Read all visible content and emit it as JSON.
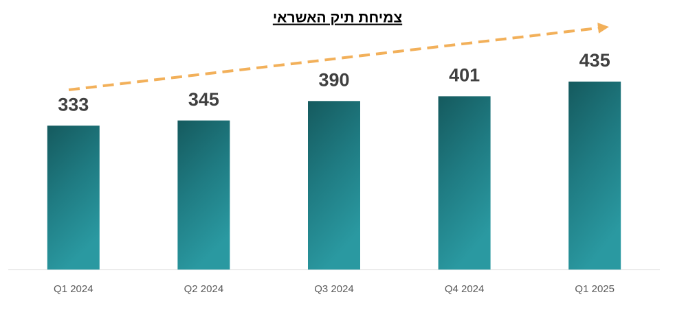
{
  "chart_data": {
    "type": "bar",
    "title": "צמיחת תיק האשראי",
    "categories": [
      "Q1 2024",
      "Q2 2024",
      "Q3 2024",
      "Q4 2024",
      "Q1 2025"
    ],
    "values": [
      333,
      345,
      390,
      401,
      435
    ],
    "color": "#1f7b80",
    "ylim": [
      0,
      500
    ]
  }
}
